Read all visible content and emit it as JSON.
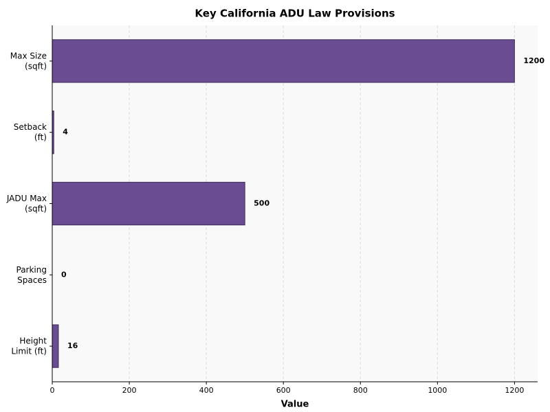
{
  "chart_data": {
    "type": "barh",
    "title": "Key California ADU Law Provisions",
    "x_label": "Value",
    "categories": [
      "Max Size\n(sqft)",
      "Setback\n(ft)",
      "JADU Max\n(sqft)",
      "Parking\nSpaces",
      "Height\nLimit (ft)"
    ],
    "values": [
      1200,
      4,
      500,
      0,
      16
    ],
    "color": "#6a4c93",
    "xlim": [
      0,
      1260
    ],
    "xticks": [
      0,
      200,
      400,
      600,
      800,
      1000,
      1200
    ],
    "grid": true
  }
}
